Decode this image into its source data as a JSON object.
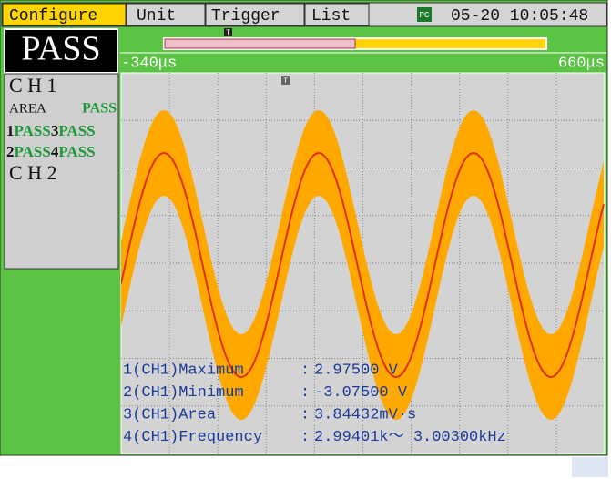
{
  "menu": {
    "tabs": [
      "Configure",
      "Unit",
      "Trigger",
      "List"
    ],
    "icon": "PC",
    "datetime": "05-20 10:05:48"
  },
  "status": {
    "result": "PASS"
  },
  "panel": {
    "ch1": "C H 1",
    "area_label": "AREA",
    "area_result": "PASS",
    "row1": [
      "1",
      "PASS",
      "3",
      "PASS"
    ],
    "row2": [
      "2",
      "PASS",
      "4",
      "PASS"
    ],
    "ch2": "C H 2"
  },
  "timebar": {
    "marker": "T",
    "start": "-340μs",
    "end": "660μs"
  },
  "plot": {
    "trigger_marker": "T"
  },
  "measurements": [
    {
      "label": "1(CH1)Maximum",
      "separator": ":",
      "value": "2.97500 V"
    },
    {
      "label": "2(CH1)Minimum",
      "separator": ":",
      "value": "-3.07500 V"
    },
    {
      "label": "3(CH1)Area",
      "separator": ":",
      "value": "3.84432mV·s"
    },
    {
      "label": "4(CH1)Frequency",
      "separator": ":",
      "value": "2.99401k～ 3.00300kHz"
    }
  ]
}
